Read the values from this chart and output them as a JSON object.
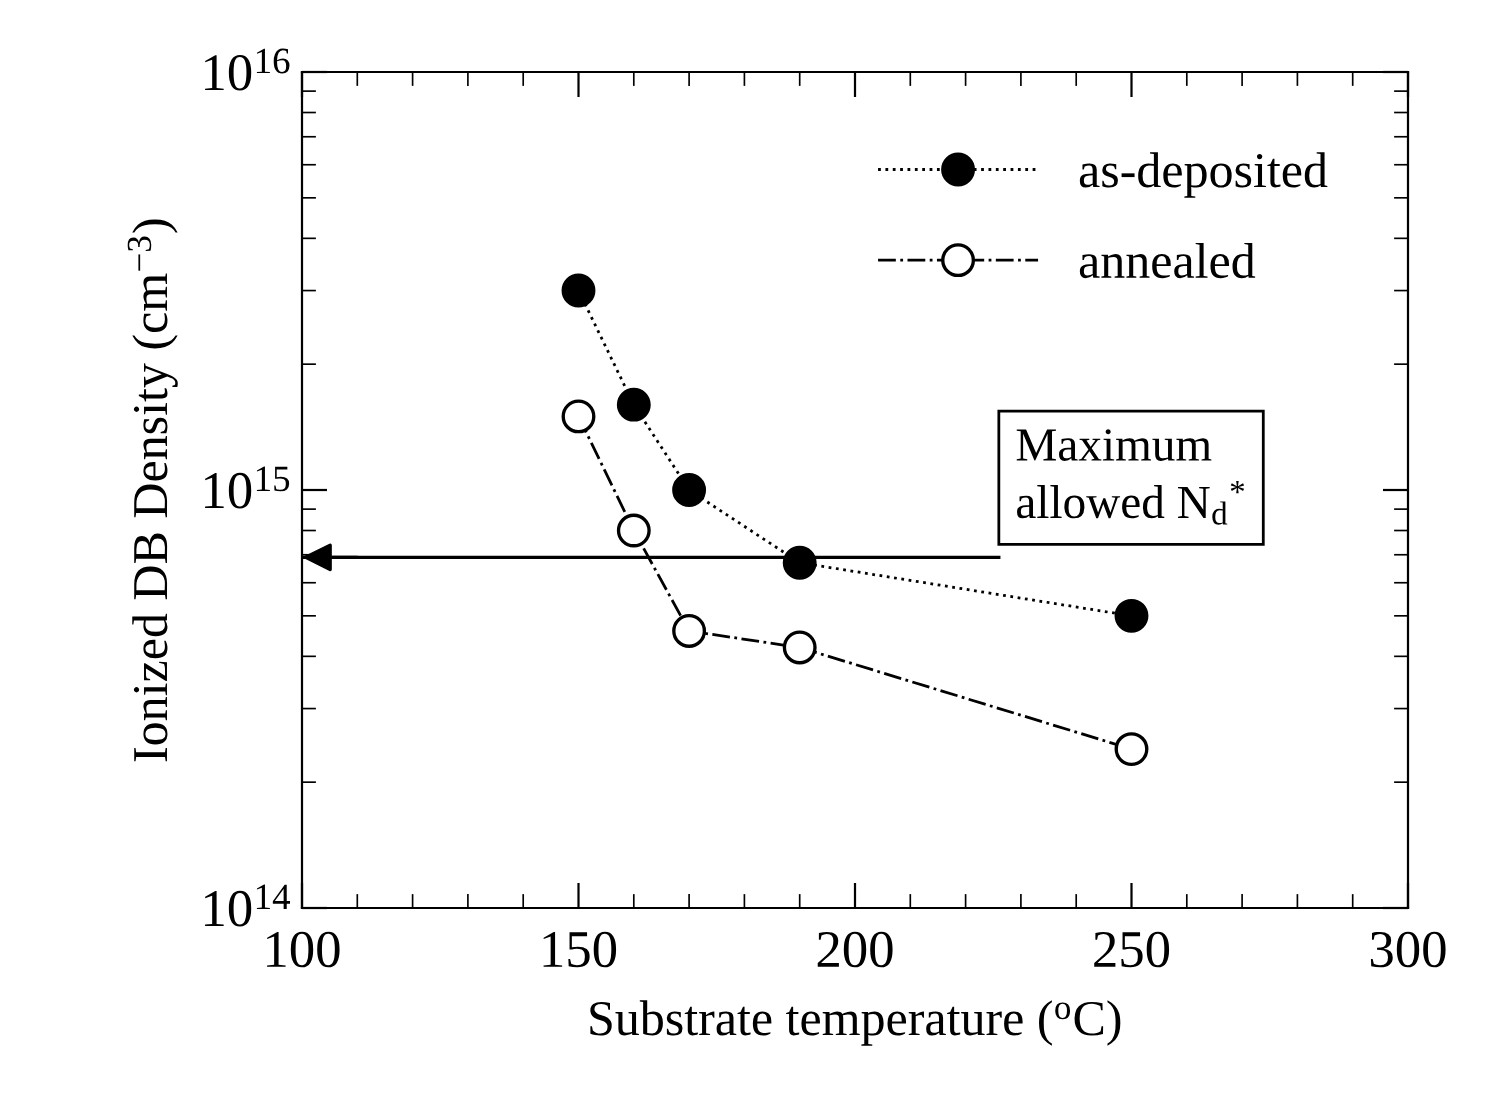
{
  "chart_data": {
    "type": "line",
    "xlabel": "Substrate temperature ($^{o}$C)",
    "ylabel": "Ionized DB Density (cm$^{−3}$)",
    "x": [
      150,
      160,
      170,
      190,
      250
    ],
    "series": [
      {
        "name": "as-deposited",
        "color": "#000000",
        "values": [
          3000000000000000.0,
          1600000000000000.0,
          1000000000000000.0,
          670000000000000.0,
          500000000000000.0
        ],
        "marker": "circle",
        "line_style": "dotted"
      },
      {
        "name": "annealed",
        "color": "#000000",
        "values": [
          1500000000000000.0,
          800000000000000.0,
          460000000000000.0,
          420000000000000.0,
          240000000000000.0
        ],
        "marker": "circle",
        "line_style": "dashdot"
      }
    ],
    "ref_lines": [
      {
        "axis": "y",
        "value": 690000000000000.0,
        "label": "Maximum\nallowed N$_{d}$$^{*}$",
        "color": "#000000",
        "line_style": "solid"
      }
    ],
    "log": "y",
    "xlim": [
      100,
      300
    ],
    "xticks": [
      100,
      150,
      200,
      250,
      300
    ],
    "ylim": [
      100000000000000.0,
      1e+16
    ],
    "yticks": [
      {
        "value": 100000000000000.0,
        "label": "10$^{14}$"
      },
      {
        "value": 1000000000000000.0,
        "label": "10$^{15}$"
      },
      {
        "value": 1e+16,
        "label": "10$^{16}$"
      }
    ],
    "grid": false,
    "legend": "top right"
  }
}
